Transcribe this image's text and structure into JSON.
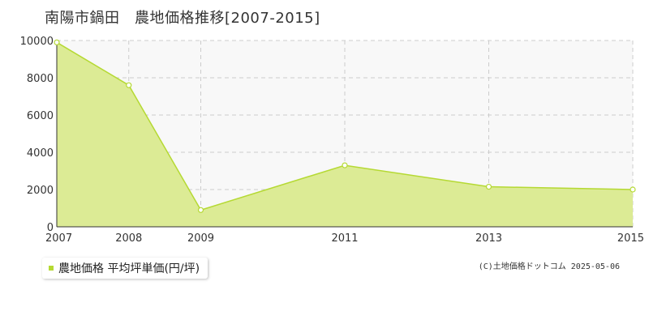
{
  "title": "南陽市鍋田　農地価格推移[2007-2015]",
  "legend_label": "農地価格 平均坪単価(円/坪)",
  "credit": "(C)土地価格ドットコム 2025-05-06",
  "colors": {
    "line": "#b5d933",
    "fill": "#dceb95",
    "marker_fill": "#ffffff",
    "grid": "#cccccc",
    "plot_bg": "#f8f8f8"
  },
  "chart_data": {
    "type": "area",
    "title": "南陽市鍋田　農地価格推移[2007-2015]",
    "xlabel": "",
    "ylabel": "",
    "x": [
      2007,
      2008,
      2009,
      2011,
      2013,
      2015
    ],
    "x_ticks": [
      "2007",
      "2008",
      "2009",
      "2011",
      "2013",
      "2015"
    ],
    "y_ticks": [
      "0",
      "2000",
      "4000",
      "6000",
      "8000",
      "10000"
    ],
    "series": [
      {
        "name": "農地価格 平均坪単価(円/坪)",
        "values": [
          9900,
          7600,
          900,
          3300,
          2150,
          2000
        ]
      }
    ],
    "xlim": [
      2007,
      2015
    ],
    "ylim": [
      0,
      10000
    ],
    "grid": true,
    "legend_position": "bottom-left"
  }
}
